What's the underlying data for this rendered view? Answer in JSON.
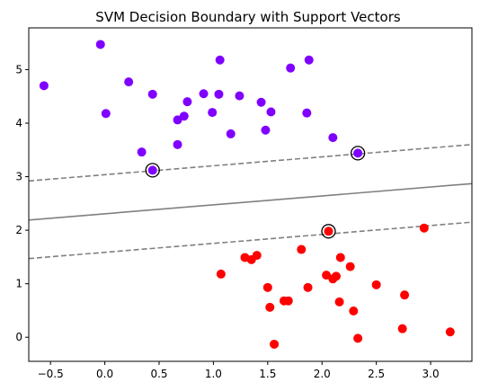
{
  "chart_data": {
    "type": "scatter",
    "title": "SVM Decision Boundary with Support Vectors",
    "xlabel": "",
    "ylabel": "",
    "xlim": [
      -0.7,
      3.38
    ],
    "ylim": [
      -0.45,
      5.78
    ],
    "grid": false,
    "x_ticks": [
      {
        "value": -0.5,
        "label": "−0.5"
      },
      {
        "value": 0.0,
        "label": "0.0"
      },
      {
        "value": 0.5,
        "label": "0.5"
      },
      {
        "value": 1.0,
        "label": "1.0"
      },
      {
        "value": 1.5,
        "label": "1.5"
      },
      {
        "value": 2.0,
        "label": "2.0"
      },
      {
        "value": 2.5,
        "label": "2.5"
      },
      {
        "value": 3.0,
        "label": "3.0"
      }
    ],
    "y_ticks": [
      {
        "value": 0,
        "label": "0"
      },
      {
        "value": 1,
        "label": "1"
      },
      {
        "value": 2,
        "label": "2"
      },
      {
        "value": 3,
        "label": "3"
      },
      {
        "value": 4,
        "label": "4"
      },
      {
        "value": 5,
        "label": "5"
      }
    ],
    "series": [
      {
        "color": "#8000ff",
        "points": [
          [
            -0.56,
            4.7
          ],
          [
            -0.04,
            5.47
          ],
          [
            0.01,
            4.18
          ],
          [
            0.22,
            4.77
          ],
          [
            0.34,
            3.46
          ],
          [
            0.44,
            4.54
          ],
          [
            0.44,
            3.12
          ],
          [
            0.67,
            4.06
          ],
          [
            0.67,
            3.6
          ],
          [
            0.73,
            4.13
          ],
          [
            0.76,
            4.4
          ],
          [
            0.91,
            4.55
          ],
          [
            0.99,
            4.2
          ],
          [
            1.05,
            4.54
          ],
          [
            1.06,
            5.18
          ],
          [
            1.16,
            3.8
          ],
          [
            1.24,
            4.51
          ],
          [
            1.44,
            4.39
          ],
          [
            1.48,
            3.87
          ],
          [
            1.53,
            4.21
          ],
          [
            1.71,
            5.03
          ],
          [
            1.86,
            4.19
          ],
          [
            1.88,
            5.18
          ],
          [
            2.1,
            3.73
          ],
          [
            2.33,
            3.44
          ]
        ]
      },
      {
        "color": "#ff0000",
        "points": [
          [
            1.07,
            1.18
          ],
          [
            1.29,
            1.49
          ],
          [
            1.35,
            1.45
          ],
          [
            1.4,
            1.53
          ],
          [
            1.5,
            0.93
          ],
          [
            1.52,
            0.56
          ],
          [
            1.56,
            -0.13
          ],
          [
            1.65,
            0.68
          ],
          [
            1.69,
            0.68
          ],
          [
            1.81,
            1.64
          ],
          [
            1.87,
            0.93
          ],
          [
            2.04,
            1.16
          ],
          [
            2.06,
            1.98
          ],
          [
            2.1,
            1.09
          ],
          [
            2.13,
            1.14
          ],
          [
            2.16,
            0.66
          ],
          [
            2.17,
            1.49
          ],
          [
            2.26,
            1.32
          ],
          [
            2.29,
            0.49
          ],
          [
            2.33,
            -0.02
          ],
          [
            2.5,
            0.98
          ],
          [
            2.74,
            0.16
          ],
          [
            2.76,
            0.79
          ],
          [
            2.94,
            2.04
          ],
          [
            3.18,
            0.1
          ]
        ]
      }
    ],
    "support_vectors": [
      [
        0.44,
        3.12
      ],
      [
        2.33,
        3.44
      ],
      [
        2.06,
        1.98
      ]
    ],
    "lines": [
      {
        "style": "solid",
        "color": "#808080",
        "from": [
          -0.7,
          2.19
        ],
        "to": [
          3.38,
          2.87
        ]
      },
      {
        "style": "dashed",
        "color": "#808080",
        "from": [
          -0.7,
          2.92
        ],
        "to": [
          3.38,
          3.6
        ]
      },
      {
        "style": "dashed",
        "color": "#808080",
        "from": [
          -0.7,
          1.47
        ],
        "to": [
          3.38,
          2.15
        ]
      }
    ]
  }
}
